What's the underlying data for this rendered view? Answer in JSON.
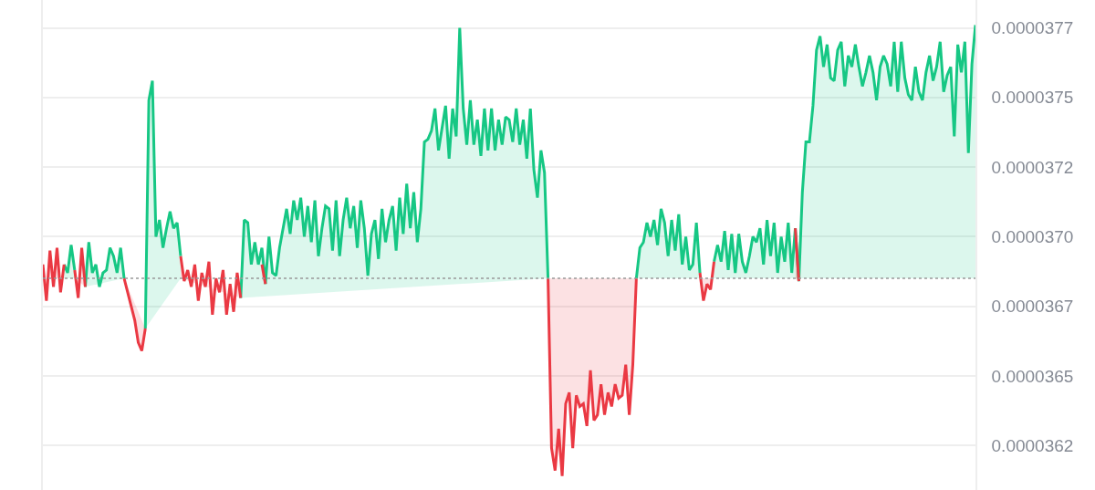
{
  "chart_data": {
    "type": "area",
    "categories": [
      null,
      null,
      null,
      null,
      null,
      null,
      null,
      null,
      null,
      null,
      null,
      null,
      null,
      null,
      null,
      null,
      null,
      null,
      null,
      null,
      null,
      null,
      null,
      null,
      null,
      null,
      null,
      null,
      null,
      null,
      null,
      null,
      null,
      null,
      null,
      null,
      null,
      null,
      null,
      null,
      null,
      null,
      null,
      null,
      null,
      null,
      null,
      null,
      null,
      null,
      null,
      null,
      null,
      null,
      null,
      null,
      null,
      null,
      null,
      null,
      null,
      null,
      null,
      null,
      null,
      null,
      null,
      null,
      null,
      null,
      null,
      null,
      null,
      null,
      null,
      null,
      null,
      null,
      null,
      null,
      null,
      null,
      null,
      null,
      null,
      null,
      null,
      null,
      null,
      null,
      null,
      null,
      null,
      null,
      null,
      null,
      null,
      null,
      null,
      null,
      null,
      null,
      null,
      null,
      null,
      null,
      null,
      null,
      null,
      null,
      null,
      null,
      null,
      null,
      null,
      null,
      null,
      null,
      null,
      null,
      null,
      null,
      null,
      null,
      null,
      null,
      null,
      null,
      null,
      null,
      null,
      null,
      null,
      null,
      null,
      null,
      null,
      null,
      null,
      null,
      null,
      null,
      null,
      null,
      null,
      null,
      null,
      null,
      null,
      null,
      null,
      null,
      null,
      null,
      null,
      null,
      null,
      null,
      null,
      null,
      null,
      null,
      null,
      null,
      null,
      null,
      null,
      null,
      null,
      null,
      null,
      null,
      null,
      null,
      null,
      null,
      null,
      null,
      null,
      null,
      null,
      null,
      null,
      null,
      null,
      null,
      null,
      null,
      null,
      null,
      null,
      null,
      null,
      null,
      null,
      null,
      null,
      null,
      null,
      null,
      null,
      null,
      null,
      null,
      null,
      null,
      null,
      null,
      null,
      null,
      null,
      null,
      null,
      null,
      null,
      null,
      null,
      null,
      null,
      null,
      null,
      null,
      null,
      null,
      null,
      null,
      null,
      null,
      null,
      null,
      null,
      null,
      null,
      null,
      null,
      null,
      null,
      null,
      null,
      null,
      null,
      null,
      null,
      null,
      null,
      null,
      null,
      null,
      null,
      null,
      null,
      null,
      null,
      null,
      null,
      null,
      null,
      null,
      null,
      null,
      null,
      null,
      null,
      null,
      null
    ],
    "series": [
      {
        "color": "#16c784",
        "values": [
          null,
          null,
          null,
          null,
          null,
          null,
          3.685e-05,
          3.682e-05,
          3.692e-05,
          3.683e-05,
          null,
          null,
          3.677e-05,
          3.693e-05,
          3.682e-05,
          3.685e-05,
          3.677e-05,
          3.682e-05,
          3.683e-05,
          3.691e-05,
          3.688e-05,
          3.682e-05,
          3.691e-05,
          3.68e-05,
          null,
          null,
          null,
          null,
          null,
          3.662e-05,
          3.744e-05,
          3.751e-05,
          3.695e-05,
          3.701e-05,
          3.691e-05,
          3.698e-05,
          3.704e-05,
          3.698e-05,
          3.7e-05,
          3.688e-05,
          null,
          null,
          null,
          null,
          null,
          null,
          null,
          null,
          null,
          null,
          null,
          null,
          null,
          null,
          null,
          null,
          3.673e-05,
          3.701e-05,
          3.7e-05,
          3.685e-05,
          3.693e-05,
          3.685e-05,
          3.691e-05,
          3.678e-05,
          3.695e-05,
          3.682e-05,
          3.681e-05,
          3.691e-05,
          3.698e-05,
          3.705e-05,
          3.696e-05,
          3.708e-05,
          3.701e-05,
          3.709e-05,
          3.695e-05,
          3.706e-05,
          3.693e-05,
          3.708e-05,
          3.688e-05,
          3.698e-05,
          3.706e-05,
          3.705e-05,
          3.69e-05,
          3.708e-05,
          3.688e-05,
          3.701e-05,
          3.709e-05,
          3.698e-05,
          3.706e-05,
          3.691e-05,
          3.708e-05,
          3.698e-05,
          3.681e-05,
          3.696e-05,
          3.701e-05,
          3.687e-05,
          3.705e-05,
          3.693e-05,
          3.701e-05,
          3.706e-05,
          3.69e-05,
          3.709e-05,
          3.696e-05,
          3.714e-05,
          3.698e-05,
          3.711e-05,
          3.693e-05,
          3.705e-05,
          3.729e-05,
          3.73e-05,
          3.733e-05,
          3.741e-05,
          3.726e-05,
          3.734e-05,
          3.742e-05,
          3.723e-05,
          3.741e-05,
          3.731e-05,
          3.77e-05,
          3.741e-05,
          3.728e-05,
          3.744e-05,
          3.728e-05,
          3.737e-05,
          3.724e-05,
          3.741e-05,
          3.726e-05,
          3.741e-05,
          3.726e-05,
          3.737e-05,
          3.728e-05,
          3.738e-05,
          3.737e-05,
          3.729e-05,
          3.741e-05,
          3.728e-05,
          3.737e-05,
          3.723e-05,
          3.741e-05,
          3.719e-05,
          3.709e-05,
          3.726e-05,
          3.718e-05,
          3.68e-05,
          null,
          null,
          null,
          null,
          null,
          null,
          null,
          null,
          null,
          null,
          null,
          null,
          null,
          null,
          null,
          null,
          null,
          null,
          null,
          null,
          null,
          null,
          null,
          null,
          3.68e-05,
          3.691e-05,
          3.693e-05,
          3.7e-05,
          3.695e-05,
          3.701e-05,
          3.692e-05,
          3.705e-05,
          3.7e-05,
          3.688e-05,
          3.701e-05,
          3.69e-05,
          3.703e-05,
          3.685e-05,
          3.695e-05,
          3.683e-05,
          3.685e-05,
          3.7e-05,
          3.682e-05,
          null,
          null,
          null,
          3.686e-05,
          3.692e-05,
          3.686e-05,
          3.697e-05,
          3.683e-05,
          3.696e-05,
          3.682e-05,
          3.696e-05,
          3.686e-05,
          3.682e-05,
          3.688e-05,
          3.695e-05,
          3.693e-05,
          3.698e-05,
          3.685e-05,
          3.701e-05,
          3.688e-05,
          3.7e-05,
          3.682e-05,
          3.695e-05,
          3.686e-05,
          3.7e-05,
          3.682e-05,
          3.698e-05,
          3.679e-05,
          3.711e-05,
          3.729e-05,
          3.729e-05,
          3.742e-05,
          3.762e-05,
          3.767e-05,
          3.756e-05,
          3.764e-05,
          3.752e-05,
          3.751e-05,
          3.762e-05,
          3.765e-05,
          3.749e-05,
          3.76e-05,
          3.756e-05,
          3.764e-05,
          3.756e-05,
          3.749e-05,
          3.754e-05,
          3.76e-05,
          3.754e-05,
          3.744e-05,
          3.756e-05,
          3.76e-05,
          3.757e-05,
          3.749e-05,
          3.765e-05,
          3.747e-05,
          3.765e-05,
          3.752e-05,
          3.746e-05,
          3.744e-05,
          3.756e-05,
          3.747e-05,
          3.744e-05,
          3.754e-05,
          3.76e-05,
          3.751e-05,
          3.756e-05,
          3.765e-05,
          3.747e-05,
          3.753e-05,
          3.756e-05,
          3.731e-05,
          3.764e-05,
          3.754e-05,
          3.765e-05,
          3.725e-05,
          3.757e-05,
          3.771e-05
        ]
      },
      {
        "color": "#ea3943",
        "values": [
          3.685e-05,
          3.672e-05,
          3.69e-05,
          3.677e-05,
          3.691e-05,
          3.675e-05,
          3.685e-05,
          null,
          null,
          3.683e-05,
          3.673e-05,
          3.691e-05,
          3.677e-05,
          null,
          null,
          null,
          null,
          null,
          null,
          null,
          null,
          null,
          null,
          3.68e-05,
          3.675e-05,
          3.67e-05,
          3.665e-05,
          3.657e-05,
          3.654e-05,
          3.662e-05,
          null,
          null,
          null,
          null,
          null,
          null,
          null,
          null,
          null,
          3.688e-05,
          3.679e-05,
          3.683e-05,
          3.677e-05,
          3.685e-05,
          3.672e-05,
          3.682e-05,
          3.677e-05,
          3.686e-05,
          3.667e-05,
          3.68e-05,
          3.675e-05,
          3.683e-05,
          3.667e-05,
          3.678e-05,
          3.668e-05,
          3.682e-05,
          3.673e-05,
          null,
          null,
          null,
          null,
          null,
          3.685e-05,
          3.678e-05,
          null,
          null,
          null,
          null,
          null,
          null,
          null,
          null,
          null,
          null,
          null,
          null,
          null,
          null,
          null,
          null,
          null,
          null,
          null,
          null,
          null,
          null,
          null,
          null,
          null,
          null,
          null,
          null,
          null,
          null,
          null,
          null,
          null,
          null,
          null,
          null,
          null,
          null,
          null,
          null,
          null,
          null,
          null,
          null,
          null,
          null,
          null,
          null,
          null,
          null,
          null,
          null,
          null,
          null,
          null,
          null,
          null,
          null,
          null,
          null,
          null,
          null,
          null,
          null,
          null,
          null,
          null,
          null,
          null,
          null,
          null,
          null,
          null,
          null,
          null,
          null,
          null,
          null,
          null,
          3.68e-05,
          3.619e-05,
          3.611e-05,
          3.626e-05,
          3.609e-05,
          3.635e-05,
          3.639e-05,
          3.619e-05,
          3.638e-05,
          3.634e-05,
          3.635e-05,
          3.627e-05,
          3.647e-05,
          3.629e-05,
          3.631e-05,
          3.642e-05,
          3.631e-05,
          3.639e-05,
          3.634e-05,
          3.642e-05,
          3.637e-05,
          3.638e-05,
          3.649e-05,
          3.631e-05,
          3.649e-05,
          3.68e-05,
          null,
          null,
          null,
          null,
          null,
          null,
          null,
          null,
          null,
          null,
          null,
          null,
          null,
          null,
          null,
          null,
          null,
          3.682e-05,
          3.672e-05,
          3.678e-05,
          3.676e-05,
          3.686e-05,
          null,
          null,
          null,
          null,
          null,
          null,
          null,
          null,
          null,
          null,
          null,
          null,
          null,
          null,
          null,
          null,
          null,
          null,
          null,
          null,
          null,
          null,
          3.698e-05,
          3.679e-05,
          null,
          null,
          null,
          null,
          null,
          null,
          null,
          null,
          null,
          null,
          null,
          null,
          null,
          null,
          null,
          null,
          null,
          null,
          null,
          null,
          null,
          null,
          null,
          null,
          null,
          null,
          null,
          null,
          null,
          null,
          null,
          null,
          null,
          null,
          null,
          null,
          null,
          null,
          null,
          null,
          null,
          null,
          null,
          null,
          null,
          null,
          null,
          null,
          null,
          null
        ]
      }
    ],
    "ylim": [
      3.604e-05,
      3.78e-05
    ],
    "yticks": [
      {
        "value": 3.77e-05,
        "label": "0.0000377"
      },
      {
        "value": 3.745e-05,
        "label": "0.0000375"
      },
      {
        "value": 3.72e-05,
        "label": "0.0000372"
      },
      {
        "value": 3.695e-05,
        "label": "0.0000370"
      },
      {
        "value": 3.67e-05,
        "label": "0.0000367"
      },
      {
        "value": 3.645e-05,
        "label": "0.0000365"
      },
      {
        "value": 3.62e-05,
        "label": "0.0000362"
      }
    ],
    "ref_lines": [
      {
        "axis": "y",
        "value": 3.68e-05,
        "color": "#999999",
        "line_style": "dotted"
      }
    ],
    "grid": "y",
    "tick_labels": "y",
    "line_style": "solid"
  }
}
